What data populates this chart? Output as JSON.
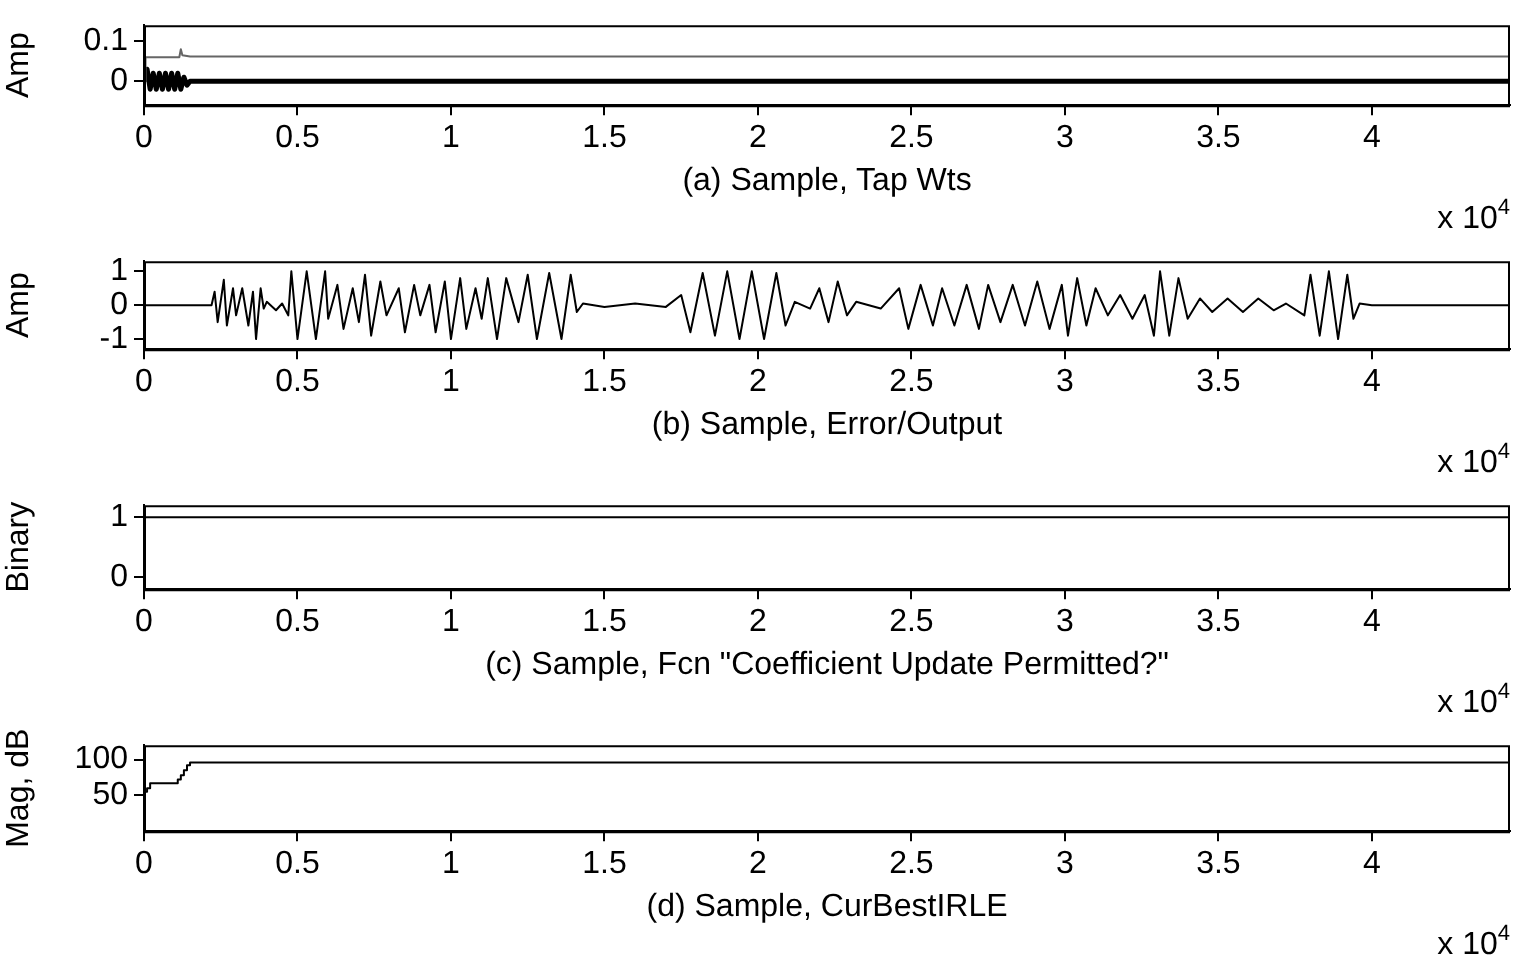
{
  "chart_data": [
    {
      "type": "line",
      "ylabel": "Amp",
      "xlabel": "(a) Sample, Tap Wts",
      "annotations": [
        "x 10$^{4}$"
      ],
      "xlim": [
        0,
        4.45
      ],
      "xticks": [
        0,
        0.5,
        1,
        1.5,
        2,
        2.5,
        3,
        3.5,
        4
      ],
      "ylim": [
        -0.06,
        0.14
      ],
      "yticks": [
        0,
        0.1
      ],
      "grid": false,
      "legend": false,
      "series": [
        {
          "color": "#666666",
          "x": [
            0,
            0.005,
            0.115,
            0.12,
            0.125,
            0.15,
            4.45
          ],
          "values": [
            0,
            0.06,
            0.06,
            0.08,
            0.065,
            0.062,
            0.062
          ]
        },
        {
          "color": "#000000",
          "x": [
            0,
            0.01,
            0.02,
            0.03,
            0.04,
            0.05,
            0.06,
            0.07,
            0.08,
            0.09,
            0.1,
            0.11,
            0.12,
            0.13,
            0.14,
            0.15,
            4.45
          ],
          "values": [
            0,
            0.03,
            -0.02,
            0.02,
            -0.02,
            0.02,
            -0.02,
            0.02,
            -0.02,
            0.02,
            -0.02,
            0.02,
            -0.02,
            0.01,
            -0.01,
            0,
            0
          ]
        }
      ]
    },
    {
      "type": "line",
      "ylabel": "Amp",
      "xlabel": "(b) Sample, Error/Output",
      "annotations": [
        "x 10$^{4}$"
      ],
      "xlim": [
        0,
        4.45
      ],
      "xticks": [
        0,
        0.5,
        1,
        1.5,
        2,
        2.5,
        3,
        3.5,
        4
      ],
      "ylim": [
        -1.3,
        1.3
      ],
      "yticks": [
        -1,
        0,
        1
      ],
      "grid": false,
      "legend": false,
      "series": [
        {
          "color": "#000000",
          "x": [
            0,
            0.22,
            0.23,
            0.24,
            0.26,
            0.27,
            0.29,
            0.3,
            0.32,
            0.34,
            0.355,
            0.365,
            0.38,
            0.39,
            0.4,
            0.43,
            0.45,
            0.47,
            0.48,
            0.5,
            0.53,
            0.56,
            0.59,
            0.6,
            0.63,
            0.65,
            0.68,
            0.7,
            0.72,
            0.74,
            0.77,
            0.79,
            0.83,
            0.85,
            0.88,
            0.9,
            0.93,
            0.95,
            0.98,
            1.0,
            1.03,
            1.05,
            1.08,
            1.1,
            1.12,
            1.15,
            1.18,
            1.22,
            1.25,
            1.28,
            1.32,
            1.36,
            1.39,
            1.41,
            1.43,
            1.5,
            1.6,
            1.7,
            1.75,
            1.78,
            1.82,
            1.86,
            1.9,
            1.94,
            1.98,
            2.02,
            2.06,
            2.09,
            2.12,
            2.17,
            2.2,
            2.23,
            2.26,
            2.29,
            2.32,
            2.4,
            2.46,
            2.49,
            2.53,
            2.57,
            2.6,
            2.64,
            2.68,
            2.72,
            2.75,
            2.79,
            2.83,
            2.87,
            2.91,
            2.95,
            2.99,
            3.01,
            3.04,
            3.07,
            3.1,
            3.14,
            3.18,
            3.22,
            3.26,
            3.29,
            3.31,
            3.34,
            3.37,
            3.4,
            3.44,
            3.48,
            3.53,
            3.58,
            3.63,
            3.68,
            3.72,
            3.78,
            3.8,
            3.83,
            3.86,
            3.89,
            3.92,
            3.94,
            3.96,
            4.0,
            4.45
          ],
          "values": [
            0,
            0,
            0.4,
            -0.5,
            0.75,
            -0.6,
            0.5,
            -0.3,
            0.5,
            -0.6,
            0.4,
            -1.0,
            0.5,
            -0.1,
            0.1,
            -0.15,
            0.05,
            -0.3,
            1.0,
            -1.0,
            1.0,
            -1.0,
            1.0,
            -0.4,
            0.6,
            -0.7,
            0.5,
            -0.5,
            0.9,
            -0.9,
            0.7,
            -0.3,
            0.5,
            -0.8,
            0.6,
            -0.3,
            0.6,
            -0.8,
            0.7,
            -1.0,
            0.8,
            -0.7,
            0.5,
            -0.4,
            0.8,
            -1.0,
            0.8,
            -0.5,
            0.9,
            -1.0,
            0.95,
            -1.0,
            0.9,
            -0.2,
            0.05,
            -0.05,
            0.05,
            -0.05,
            0.3,
            -0.8,
            0.95,
            -0.9,
            1.0,
            -1.0,
            1.0,
            -1.0,
            0.95,
            -0.6,
            0.1,
            -0.1,
            0.5,
            -0.5,
            0.7,
            -0.3,
            0.1,
            -0.1,
            0.5,
            -0.7,
            0.6,
            -0.6,
            0.5,
            -0.6,
            0.6,
            -0.7,
            0.6,
            -0.5,
            0.6,
            -0.6,
            0.7,
            -0.7,
            0.6,
            -0.9,
            0.8,
            -0.6,
            0.5,
            -0.3,
            0.3,
            -0.4,
            0.3,
            -0.9,
            1.0,
            -0.9,
            0.8,
            -0.4,
            0.2,
            -0.2,
            0.2,
            -0.2,
            0.2,
            -0.15,
            0.05,
            -0.3,
            0.9,
            -0.9,
            1.0,
            -1.0,
            0.9,
            -0.4,
            0.05,
            0,
            0
          ]
        }
      ]
    },
    {
      "type": "line",
      "ylabel": "Binary",
      "xlabel": "(c) Sample, Fcn \"Coefficient Update Permitted?\"",
      "annotations": [
        "x 10$^{4}$"
      ],
      "xlim": [
        0,
        4.45
      ],
      "xticks": [
        0,
        0.5,
        1,
        1.5,
        2,
        2.5,
        3,
        3.5,
        4
      ],
      "ylim": [
        -0.2,
        1.2
      ],
      "yticks": [
        0,
        1
      ],
      "grid": false,
      "legend": false,
      "series": [
        {
          "color": "#000000",
          "x": [
            0,
            4.45
          ],
          "values": [
            1,
            1
          ]
        }
      ]
    },
    {
      "type": "step",
      "ylabel": "Mag, dB",
      "xlabel": "(d) Sample, CurBestIRLE",
      "annotations": [
        "x 10$^{4}$"
      ],
      "xlim": [
        0,
        4.45
      ],
      "xticks": [
        0,
        0.5,
        1,
        1.5,
        2,
        2.5,
        3,
        3.5,
        4
      ],
      "ylim": [
        0,
        120
      ],
      "yticks": [
        50,
        100
      ],
      "grid": false,
      "legend": false,
      "series": [
        {
          "color": "#000000",
          "x": [
            0,
            0.01,
            0.02,
            0.1,
            0.11,
            0.12,
            0.13,
            0.14,
            0.15,
            4.45
          ],
          "values": [
            55,
            60,
            67,
            67,
            72,
            78,
            85,
            92,
            96,
            96
          ]
        }
      ]
    }
  ]
}
